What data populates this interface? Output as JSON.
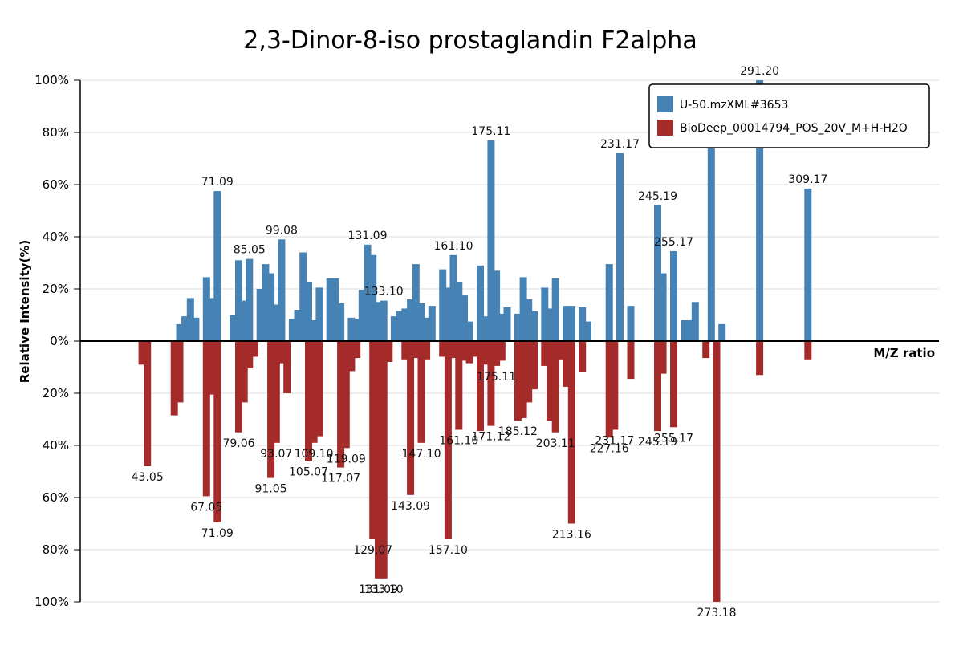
{
  "chart_data": {
    "type": "bar",
    "title": "2,3-Dinor-8-iso prostaglandin F2alpha",
    "xlabel": "M/Z ratio",
    "ylabel": "Relative Intensity(%)",
    "y_ticks": [
      "100%",
      "80%",
      "60%",
      "40%",
      "20%",
      "0%",
      "20%",
      "40%",
      "60%",
      "80%",
      "100%"
    ],
    "ylim": [
      -100,
      100
    ],
    "xlim": [
      20,
      340
    ],
    "grid": true,
    "legend_position": "top-right",
    "series": [
      {
        "name": "U-50.mzXML#3653",
        "color": "#4682b4",
        "direction": "up",
        "points": [
          {
            "mz": 57.07,
            "value": 6.5
          },
          {
            "mz": 59.05,
            "value": 9.5
          },
          {
            "mz": 61.07,
            "value": 16.5
          },
          {
            "mz": 63.05,
            "value": 9.0
          },
          {
            "mz": 67.05,
            "value": 24.5
          },
          {
            "mz": 69.07,
            "value": 16.5
          },
          {
            "mz": 71.09,
            "value": 57.5,
            "label": "71.09"
          },
          {
            "mz": 77.04,
            "value": 10.0
          },
          {
            "mz": 79.06,
            "value": 31.0
          },
          {
            "mz": 81.07,
            "value": 15.5
          },
          {
            "mz": 83.05,
            "value": 31.5,
            "label": "85.05"
          },
          {
            "mz": 87.04,
            "value": 20.0
          },
          {
            "mz": 89.06,
            "value": 29.5
          },
          {
            "mz": 91.05,
            "value": 26.0
          },
          {
            "mz": 93.07,
            "value": 14.0
          },
          {
            "mz": 95.05,
            "value": 39.0,
            "label": "99.08"
          },
          {
            "mz": 99.08,
            "value": 8.5
          },
          {
            "mz": 101.06,
            "value": 12.0
          },
          {
            "mz": 103.05,
            "value": 34.0
          },
          {
            "mz": 105.07,
            "value": 22.5
          },
          {
            "mz": 107.05,
            "value": 8.0
          },
          {
            "mz": 109.1,
            "value": 20.5
          },
          {
            "mz": 113.06,
            "value": 24.0
          },
          {
            "mz": 115.07,
            "value": 24.0
          },
          {
            "mz": 117.07,
            "value": 14.5
          },
          {
            "mz": 121.06,
            "value": 9.0
          },
          {
            "mz": 123.08,
            "value": 8.5
          },
          {
            "mz": 125.06,
            "value": 19.5
          },
          {
            "mz": 127.08,
            "value": 37.0,
            "label": "131.09"
          },
          {
            "mz": 129.07,
            "value": 33.0
          },
          {
            "mz": 131.09,
            "value": 15.0
          },
          {
            "mz": 133.1,
            "value": 15.5,
            "label": "133.10"
          },
          {
            "mz": 137.06,
            "value": 9.5
          },
          {
            "mz": 139.08,
            "value": 11.5
          },
          {
            "mz": 141.06,
            "value": 12.5
          },
          {
            "mz": 143.09,
            "value": 16.0
          },
          {
            "mz": 145.1,
            "value": 29.5
          },
          {
            "mz": 147.1,
            "value": 14.5
          },
          {
            "mz": 149.07,
            "value": 9.0
          },
          {
            "mz": 151.08,
            "value": 13.5
          },
          {
            "mz": 155.09,
            "value": 27.5
          },
          {
            "mz": 157.1,
            "value": 20.5
          },
          {
            "mz": 159.08,
            "value": 33.0,
            "label": "161.10"
          },
          {
            "mz": 161.1,
            "value": 22.5
          },
          {
            "mz": 163.1,
            "value": 17.5
          },
          {
            "mz": 165.07,
            "value": 7.5
          },
          {
            "mz": 169.08,
            "value": 29.0
          },
          {
            "mz": 171.12,
            "value": 9.5
          },
          {
            "mz": 173.1,
            "value": 77.0,
            "label": "175.11"
          },
          {
            "mz": 175.11,
            "value": 27.0
          },
          {
            "mz": 177.09,
            "value": 10.5
          },
          {
            "mz": 179.1,
            "value": 13.0
          },
          {
            "mz": 183.11,
            "value": 10.5
          },
          {
            "mz": 185.12,
            "value": 24.5
          },
          {
            "mz": 187.09,
            "value": 16.0
          },
          {
            "mz": 189.11,
            "value": 11.5
          },
          {
            "mz": 193.1,
            "value": 20.5
          },
          {
            "mz": 195.11,
            "value": 12.5
          },
          {
            "mz": 197.12,
            "value": 24.0
          },
          {
            "mz": 201.1,
            "value": 13.5
          },
          {
            "mz": 203.11,
            "value": 13.5
          },
          {
            "mz": 207.13,
            "value": 13.0
          },
          {
            "mz": 209.11,
            "value": 7.5
          },
          {
            "mz": 217.13,
            "value": 29.5
          },
          {
            "mz": 221.12,
            "value": 72.0,
            "label": "231.17"
          },
          {
            "mz": 225.15,
            "value": 13.5
          },
          {
            "mz": 235.17,
            "value": 52.0,
            "label": "245.19"
          },
          {
            "mz": 237.15,
            "value": 26.0
          },
          {
            "mz": 241.15,
            "value": 34.5,
            "label": "255.17"
          },
          {
            "mz": 245.19,
            "value": 8.0
          },
          {
            "mz": 247.16,
            "value": 8.0
          },
          {
            "mz": 249.17,
            "value": 15.0
          },
          {
            "mz": 255.17,
            "value": 83.0
          },
          {
            "mz": 259.17,
            "value": 6.5
          },
          {
            "mz": 273.18,
            "value": 100.0,
            "label": "291.20"
          },
          {
            "mz": 291.2,
            "value": 58.5,
            "label": "309.17"
          }
        ]
      },
      {
        "name": "BioDeep_00014794_POS_20V_M+H-H2O",
        "color": "#a52a2a",
        "direction": "down",
        "points": [
          {
            "mz": 43.05,
            "value": 9.0
          },
          {
            "mz": 45.03,
            "value": 48.0,
            "label": "43.05"
          },
          {
            "mz": 55.05,
            "value": 28.5
          },
          {
            "mz": 57.07,
            "value": 23.5
          },
          {
            "mz": 67.05,
            "value": 59.5,
            "label": "67.05"
          },
          {
            "mz": 69.07,
            "value": 20.5
          },
          {
            "mz": 71.09,
            "value": 69.5,
            "label": "71.09"
          },
          {
            "mz": 79.06,
            "value": 35.0,
            "label": "79.06"
          },
          {
            "mz": 81.07,
            "value": 23.5
          },
          {
            "mz": 83.05,
            "value": 10.5
          },
          {
            "mz": 85.05,
            "value": 6.0
          },
          {
            "mz": 91.05,
            "value": 52.5,
            "label": "91.05"
          },
          {
            "mz": 93.07,
            "value": 39.0,
            "label": "93.07"
          },
          {
            "mz": 95.05,
            "value": 8.5
          },
          {
            "mz": 97.06,
            "value": 20.0
          },
          {
            "mz": 105.07,
            "value": 46.0,
            "label": "105.07"
          },
          {
            "mz": 107.05,
            "value": 39.0,
            "label": "109.10"
          },
          {
            "mz": 109.1,
            "value": 36.5
          },
          {
            "mz": 117.07,
            "value": 48.5,
            "label": "117.07"
          },
          {
            "mz": 119.09,
            "value": 41.0,
            "label": "119.09"
          },
          {
            "mz": 121.06,
            "value": 11.5
          },
          {
            "mz": 123.08,
            "value": 6.5
          },
          {
            "mz": 129.07,
            "value": 76.0,
            "label": "129.07"
          },
          {
            "mz": 131.09,
            "value": 91.0,
            "label": "131.09"
          },
          {
            "mz": 133.1,
            "value": 91.0,
            "label": "133.10"
          },
          {
            "mz": 135.08,
            "value": 8.0
          },
          {
            "mz": 141.06,
            "value": 7.0
          },
          {
            "mz": 143.09,
            "value": 59.0,
            "label": "143.09"
          },
          {
            "mz": 145.1,
            "value": 6.5
          },
          {
            "mz": 147.1,
            "value": 39.0,
            "label": "147.10"
          },
          {
            "mz": 149.07,
            "value": 7.0
          },
          {
            "mz": 155.09,
            "value": 6.0
          },
          {
            "mz": 157.1,
            "value": 76.0,
            "label": "157.10"
          },
          {
            "mz": 159.08,
            "value": 6.5
          },
          {
            "mz": 161.1,
            "value": 34.0,
            "label": "161.10"
          },
          {
            "mz": 163.1,
            "value": 7.5
          },
          {
            "mz": 165.07,
            "value": 8.5
          },
          {
            "mz": 167.09,
            "value": 6.0
          },
          {
            "mz": 169.08,
            "value": 34.5
          },
          {
            "mz": 171.12,
            "value": 9.0
          },
          {
            "mz": 173.1,
            "value": 32.5,
            "label": "171.12"
          },
          {
            "mz": 175.11,
            "value": 9.5,
            "label": "175.11"
          },
          {
            "mz": 177.09,
            "value": 7.5
          },
          {
            "mz": 183.11,
            "value": 30.5,
            "label": "185.12"
          },
          {
            "mz": 185.12,
            "value": 29.5
          },
          {
            "mz": 187.09,
            "value": 23.5
          },
          {
            "mz": 189.11,
            "value": 18.5
          },
          {
            "mz": 193.1,
            "value": 9.5
          },
          {
            "mz": 195.11,
            "value": 30.5
          },
          {
            "mz": 197.12,
            "value": 35.0,
            "label": "203.11"
          },
          {
            "mz": 199.11,
            "value": 7.0
          },
          {
            "mz": 201.1,
            "value": 17.5
          },
          {
            "mz": 203.11,
            "value": 70.0,
            "label": "213.16"
          },
          {
            "mz": 207.13,
            "value": 12.0
          },
          {
            "mz": 217.13,
            "value": 37.0,
            "label": "227.16"
          },
          {
            "mz": 219.12,
            "value": 34.0,
            "label": "231.17"
          },
          {
            "mz": 225.15,
            "value": 14.5
          },
          {
            "mz": 235.17,
            "value": 34.5,
            "label": "245.19"
          },
          {
            "mz": 237.15,
            "value": 12.5
          },
          {
            "mz": 241.15,
            "value": 33.0,
            "label": "255.17"
          },
          {
            "mz": 253.18,
            "value": 6.5
          },
          {
            "mz": 257.17,
            "value": 100.0,
            "label": "273.18"
          },
          {
            "mz": 273.18,
            "value": 13.0
          },
          {
            "mz": 291.2,
            "value": 7.0
          }
        ]
      }
    ]
  }
}
